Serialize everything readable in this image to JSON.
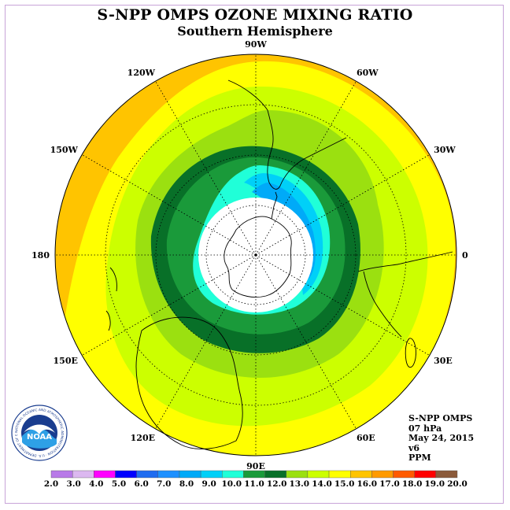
{
  "title": "S-NPP OMPS OZONE MIXING RATIO",
  "subtitle": "Southern Hemisphere",
  "longitude_labels": [
    {
      "text": "90W",
      "lon": -90
    },
    {
      "text": "60W",
      "lon": -60
    },
    {
      "text": "120W",
      "lon": -120
    },
    {
      "text": "30W",
      "lon": -30
    },
    {
      "text": "150W",
      "lon": -150
    },
    {
      "text": "0",
      "lon": 0
    },
    {
      "text": "180",
      "lon": 180
    },
    {
      "text": "30E",
      "lon": 30
    },
    {
      "text": "150E",
      "lon": 150
    },
    {
      "text": "60E",
      "lon": 60
    },
    {
      "text": "120E",
      "lon": 120
    },
    {
      "text": "90E",
      "lon": 90
    }
  ],
  "info": {
    "instrument": "S-NPP OMPS",
    "level": "07 hPa",
    "date": "May 24, 2015",
    "version": "v6",
    "unit": "PPM"
  },
  "logo": {
    "text": "NOAA",
    "ring_text": "NATIONAL OCEANIC AND ATMOSPHERIC ADMINISTRATION · U.S. DEPARTMENT OF COMMERCE"
  },
  "colorbar": {
    "labels": [
      "2.0",
      "3.0",
      "4.0",
      "5.0",
      "6.0",
      "7.0",
      "8.0",
      "9.0",
      "10.0",
      "11.0",
      "12.0",
      "13.0",
      "14.0",
      "15.0",
      "16.0",
      "17.0",
      "18.0",
      "19.0",
      "20.0"
    ],
    "colors": [
      "#b87ae8",
      "#dcb8f0",
      "#ff00ff",
      "#0000ff",
      "#1f6cf0",
      "#1e90ff",
      "#00aaf8",
      "#00d0f8",
      "#20ffd8",
      "#1a9a3a",
      "#087028",
      "#9be010",
      "#ccff00",
      "#ffff00",
      "#ffc400",
      "#ff9a00",
      "#ff5a00",
      "#ff0000",
      "#8b5a3a"
    ]
  },
  "colors": {
    "band_12": "#087028",
    "band_11": "#1a9a3a",
    "band_10": "#20ffd8",
    "band_9": "#00d0f8",
    "band_8": "#00aaf8",
    "band_13": "#9be010",
    "band_14": "#ccff00",
    "band_15": "#ffff00",
    "band_16": "#ffc400"
  }
}
